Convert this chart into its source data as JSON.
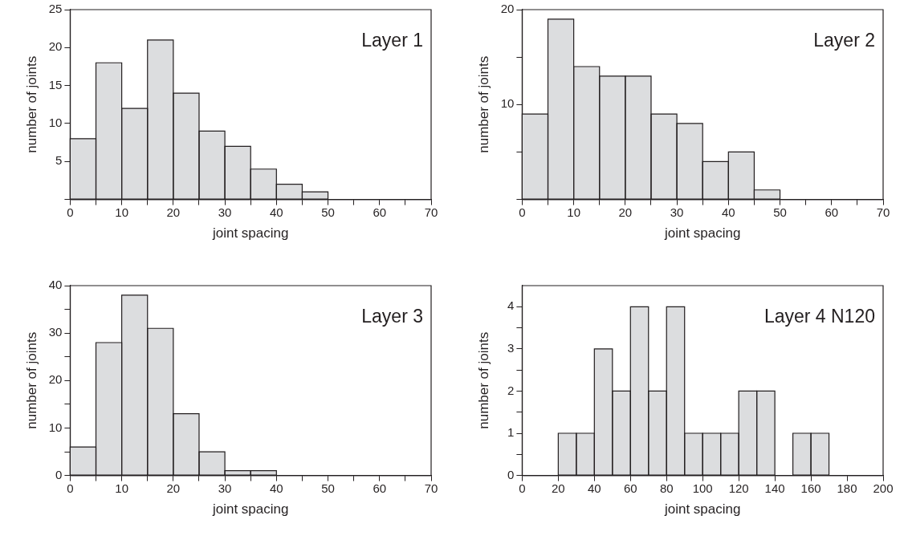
{
  "chart_data": [
    {
      "type": "histogram",
      "xlabel": "joint spacing",
      "ylabel": "number of joints",
      "annotations": [
        "Layer 1"
      ],
      "color": "#dcdddf",
      "bins": [
        0,
        5,
        10,
        15,
        20,
        25,
        30,
        35,
        40,
        45,
        50
      ],
      "values": [
        8,
        18,
        12,
        21,
        14,
        9,
        7,
        4,
        2,
        1
      ],
      "xlim": [
        0,
        70
      ],
      "xticks": [
        0,
        {
          "value": 5,
          "label": null
        },
        10,
        {
          "value": 15,
          "label": null
        },
        20,
        {
          "value": 25,
          "label": null
        },
        30,
        {
          "value": 35,
          "label": null
        },
        40,
        {
          "value": 45,
          "label": null
        },
        50,
        {
          "value": 55,
          "label": null
        },
        60,
        {
          "value": 65,
          "label": null
        },
        70
      ],
      "ylim": [
        0,
        25
      ],
      "yticks": [
        {
          "value": 0,
          "label": null
        },
        5,
        10,
        15,
        20,
        25
      ]
    },
    {
      "type": "histogram",
      "xlabel": "joint spacing",
      "ylabel": "number of joints",
      "annotations": [
        "Layer 2"
      ],
      "color": "#dcdddf",
      "bins": [
        0,
        5,
        10,
        15,
        20,
        25,
        30,
        35,
        40,
        45,
        50
      ],
      "values": [
        9,
        19,
        14,
        13,
        13,
        9,
        8,
        4,
        5,
        1
      ],
      "xlim": [
        0,
        70
      ],
      "xticks": [
        0,
        {
          "value": 5,
          "label": null
        },
        10,
        {
          "value": 15,
          "label": null
        },
        20,
        {
          "value": 25,
          "label": null
        },
        30,
        {
          "value": 35,
          "label": null
        },
        40,
        {
          "value": 45,
          "label": null
        },
        50,
        {
          "value": 55,
          "label": null
        },
        60,
        {
          "value": 65,
          "label": null
        },
        70
      ],
      "ylim": [
        0,
        20
      ],
      "yticks": [
        {
          "value": 0,
          "label": null
        },
        {
          "value": 5,
          "label": null
        },
        10,
        {
          "value": 15,
          "label": null
        },
        20
      ]
    },
    {
      "type": "histogram",
      "xlabel": "joint spacing",
      "ylabel": "number of joints",
      "annotations": [
        "Layer 3"
      ],
      "color": "#dcdddf",
      "bins": [
        0,
        5,
        10,
        15,
        20,
        25,
        30,
        35,
        40
      ],
      "values": [
        6,
        28,
        38,
        31,
        13,
        5,
        1,
        1
      ],
      "xlim": [
        0,
        70
      ],
      "xticks": [
        0,
        {
          "value": 5,
          "label": null
        },
        10,
        {
          "value": 15,
          "label": null
        },
        20,
        {
          "value": 25,
          "label": null
        },
        30,
        {
          "value": 35,
          "label": null
        },
        40,
        {
          "value": 45,
          "label": null
        },
        50,
        {
          "value": 55,
          "label": null
        },
        60,
        {
          "value": 65,
          "label": null
        },
        70
      ],
      "ylim": [
        0,
        40
      ],
      "yticks": [
        0,
        {
          "value": 5,
          "label": null
        },
        10,
        {
          "value": 15,
          "label": null
        },
        20,
        {
          "value": 25,
          "label": null
        },
        30,
        {
          "value": 35,
          "label": null
        },
        40
      ]
    },
    {
      "type": "histogram",
      "xlabel": "joint spacing",
      "ylabel": "number of joints",
      "annotations": [
        "Layer 4 N120"
      ],
      "color": "#dcdddf",
      "bins": [
        20,
        30,
        40,
        50,
        60,
        70,
        80,
        90,
        100,
        110,
        120,
        130,
        140,
        150,
        160,
        170
      ],
      "values": [
        1,
        1,
        3,
        2,
        4,
        2,
        4,
        1,
        1,
        1,
        2,
        2,
        0,
        1,
        1
      ],
      "xlim": [
        0,
        200
      ],
      "xticks": [
        0,
        20,
        40,
        60,
        80,
        100,
        120,
        140,
        160,
        180,
        200
      ],
      "ylim": [
        0,
        4.5
      ],
      "yticks": [
        0,
        {
          "value": 0.5,
          "label": null
        },
        1,
        {
          "value": 1.5,
          "label": null
        },
        2,
        {
          "value": 2.5,
          "label": null
        },
        3,
        {
          "value": 3.5,
          "label": null
        },
        4
      ]
    }
  ]
}
